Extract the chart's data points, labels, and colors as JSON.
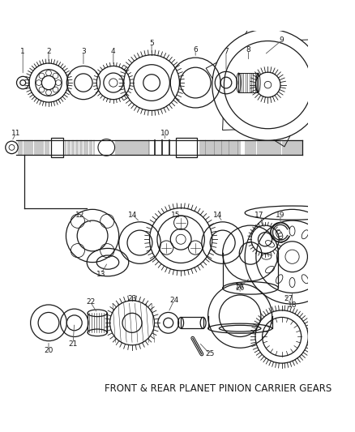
{
  "title": "FRONT & REAR PLANET PINION CARRIER GEARS",
  "background_color": "#ffffff",
  "line_color": "#1a1a1a",
  "fig_w": 4.38,
  "fig_h": 5.33,
  "dpi": 100
}
